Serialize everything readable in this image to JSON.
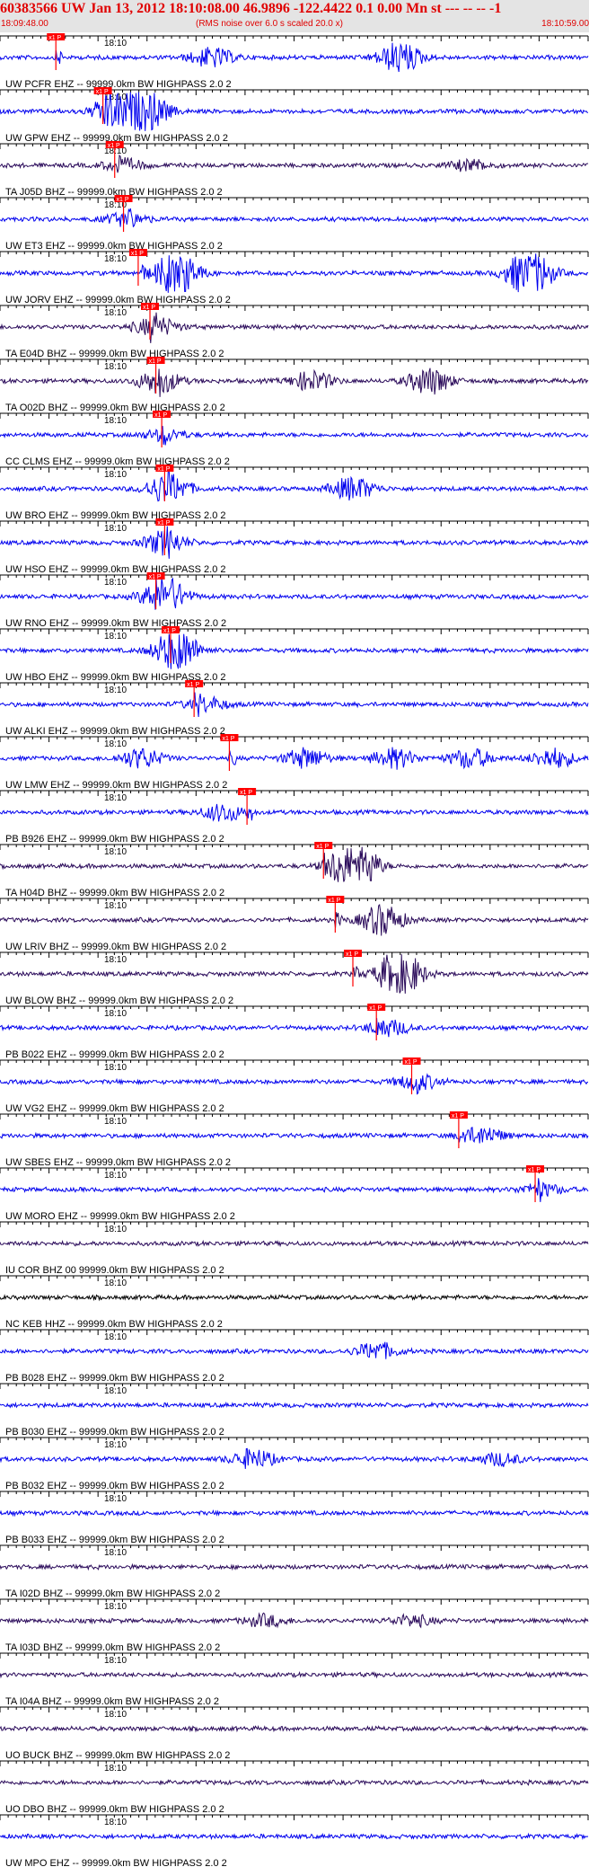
{
  "header": {
    "title": "60383566 UW Jan 13, 2012 18:10:08.00   46.9896 -122.4422  0.1 0.00 Mn st --- -- --  -1",
    "start_time": "18:09:48.00",
    "subtitle": "(RMS noise over 6.0 s scaled 20.0 x)",
    "end_time": "18:10:59.00"
  },
  "colors": {
    "trace_blue": "#0000ee",
    "trace_dark": "#2a0a5a",
    "trace_black": "#000000",
    "pick_red": "#ff0000",
    "header_bg": "#e4e4e4",
    "title_red": "#e00000"
  },
  "chart_data": {
    "type": "line",
    "time_range": [
      "18:09:48.00",
      "18:10:59.00"
    ],
    "minute_tick_label": "18:10",
    "pick_label": "x1 P",
    "traces": [
      {
        "label": "UW PCFR EHZ -- 99999.0km BW  HIGHPASS  2.0  2",
        "color": "blue",
        "pick": 0.095,
        "events": [
          [
            0.36,
            2.5
          ],
          [
            0.68,
            4
          ]
        ]
      },
      {
        "label": "UW GPW EHZ -- 99999.0km BW  HIGHPASS  2.0  2",
        "color": "blue",
        "pick": 0.175,
        "events": [
          [
            0.2,
            6
          ],
          [
            0.25,
            5
          ]
        ]
      },
      {
        "label": "TA J05D BHZ -- 99999.0km BW  HIGHPASS  2.0  2",
        "color": "dark",
        "pick": 0.195,
        "events": [
          [
            0.21,
            1.5
          ],
          [
            0.8,
            1.4
          ]
        ]
      },
      {
        "label": "UW ET3 EHZ -- 99999.0km BW  HIGHPASS  2.0  2",
        "color": "blue",
        "pick": 0.21,
        "events": [
          [
            0.215,
            1.6
          ]
        ]
      },
      {
        "label": "UW JORV EHZ -- 99999.0km BW  HIGHPASS  2.0  2",
        "color": "blue",
        "pick": 0.235,
        "events": [
          [
            0.3,
            6
          ],
          [
            0.9,
            7
          ]
        ]
      },
      {
        "label": "TA E04D BHZ -- 99999.0km BW  HIGHPASS  2.0  2",
        "color": "dark",
        "pick": 0.255,
        "events": [
          [
            0.265,
            2.5
          ]
        ]
      },
      {
        "label": "TA O02D BHZ -- 99999.0km BW  HIGHPASS  2.0  2",
        "color": "dark",
        "pick": 0.265,
        "events": [
          [
            0.27,
            3
          ],
          [
            0.53,
            2.5
          ],
          [
            0.73,
            3.5
          ]
        ]
      },
      {
        "label": "CC CLMS EHZ -- 99999.0km BW  HIGHPASS  2.0  2",
        "color": "blue",
        "pick": 0.275,
        "events": [
          [
            0.28,
            1.4
          ]
        ]
      },
      {
        "label": "UW BRO EHZ -- 99999.0km BW  HIGHPASS  2.0  2",
        "color": "blue",
        "pick": 0.28,
        "events": [
          [
            0.285,
            4
          ],
          [
            0.6,
            3
          ]
        ]
      },
      {
        "label": "UW HSO EHZ -- 99999.0km BW  HIGHPASS  2.0  2",
        "color": "blue",
        "pick": 0.28,
        "events": [
          [
            0.28,
            3
          ]
        ]
      },
      {
        "label": "UW RNO EHZ -- 99999.0km BW  HIGHPASS  2.0  2",
        "color": "blue",
        "pick": 0.265,
        "events": [
          [
            0.28,
            5
          ]
        ]
      },
      {
        "label": "UW HBO EHZ -- 99999.0km BW  HIGHPASS  2.0  2",
        "color": "blue",
        "pick": 0.29,
        "events": [
          [
            0.3,
            6
          ]
        ]
      },
      {
        "label": "UW ALKI EHZ -- 99999.0km BW  HIGHPASS  2.0  2",
        "color": "blue",
        "pick": 0.33,
        "events": [
          [
            0.35,
            1.8
          ]
        ]
      },
      {
        "label": "UW LMW EHZ -- 99999.0km BW  HIGHPASS  2.0  2",
        "color": "blue",
        "pick": 0.39,
        "events": [
          [
            0.24,
            2.5
          ],
          [
            0.52,
            2.5
          ],
          [
            0.67,
            2.5
          ],
          [
            0.8,
            2.5
          ],
          [
            0.94,
            2.5
          ]
        ]
      },
      {
        "label": "PB B926 EHZ -- 99999.0km BW  HIGHPASS  2.0  2",
        "color": "blue",
        "pick": 0.42,
        "events": [
          [
            0.38,
            2.2
          ]
        ]
      },
      {
        "label": "TA H04D BHZ -- 99999.0km BW  HIGHPASS  2.0  2",
        "color": "dark",
        "pick": 0.55,
        "events": [
          [
            0.6,
            10
          ]
        ]
      },
      {
        "label": "UW LRIV BHZ -- 99999.0km BW  HIGHPASS  2.0  2",
        "color": "dark",
        "pick": 0.57,
        "events": [
          [
            0.65,
            4
          ]
        ]
      },
      {
        "label": "UW BLOW BHZ -- 99999.0km BW  HIGHPASS  2.0  2",
        "color": "dark",
        "pick": 0.6,
        "events": [
          [
            0.68,
            7
          ]
        ]
      },
      {
        "label": "PB B022 EHZ -- 99999.0km BW  HIGHPASS  2.0  2",
        "color": "blue",
        "pick": 0.64,
        "events": [
          [
            0.66,
            2
          ]
        ]
      },
      {
        "label": "UW VG2 EHZ -- 99999.0km BW  HIGHPASS  2.0  2",
        "color": "blue",
        "pick": 0.7,
        "events": [
          [
            0.71,
            2
          ]
        ]
      },
      {
        "label": "UW SBES EHZ -- 99999.0km BW  HIGHPASS  2.0  2",
        "color": "blue",
        "pick": 0.78,
        "events": [
          [
            0.82,
            2.2
          ]
        ]
      },
      {
        "label": "UW MORO EHZ -- 99999.0km BW  HIGHPASS  2.0  2",
        "color": "blue",
        "pick": 0.91,
        "events": [
          [
            0.92,
            1.6
          ]
        ]
      },
      {
        "label": "IU COR BHZ 00 99999.0km BW  HIGHPASS  2.0  2",
        "color": "dark",
        "pick": null,
        "events": []
      },
      {
        "label": "NC KEB HHZ -- 99999.0km BW  HIGHPASS  2.0  2",
        "color": "black",
        "pick": null,
        "events": []
      },
      {
        "label": "PB B028 EHZ -- 99999.0km BW  HIGHPASS  2.0  2",
        "color": "blue",
        "pick": null,
        "events": [
          [
            0.64,
            2.2
          ]
        ]
      },
      {
        "label": "PB B030 EHZ -- 99999.0km BW  HIGHPASS  2.0  2",
        "color": "blue",
        "pick": null,
        "events": []
      },
      {
        "label": "PB B032 EHZ -- 99999.0km BW  HIGHPASS  2.0  2",
        "color": "blue",
        "pick": null,
        "events": [
          [
            0.43,
            2.5
          ],
          [
            0.85,
            1.6
          ]
        ]
      },
      {
        "label": "PB B033 EHZ -- 99999.0km BW  HIGHPASS  2.0  2",
        "color": "blue",
        "pick": null,
        "events": []
      },
      {
        "label": "TA I02D BHZ -- 99999.0km BW  HIGHPASS  2.0  2",
        "color": "dark",
        "pick": null,
        "events": []
      },
      {
        "label": "TA I03D BHZ -- 99999.0km BW  HIGHPASS  2.0  2",
        "color": "dark",
        "pick": null,
        "events": [
          [
            0.45,
            1.5
          ],
          [
            0.7,
            1.4
          ]
        ]
      },
      {
        "label": "TA I04A BHZ -- 99999.0km BW  HIGHPASS  2.0  2",
        "color": "dark",
        "pick": null,
        "events": []
      },
      {
        "label": "UO BUCK BHZ -- 99999.0km BW  HIGHPASS  2.0  2",
        "color": "dark",
        "pick": null,
        "events": []
      },
      {
        "label": "UO DBO BHZ -- 99999.0km BW  HIGHPASS  2.0  2",
        "color": "dark",
        "pick": null,
        "events": []
      },
      {
        "label": "UW MPO EHZ -- 99999.0km BW  HIGHPASS  2.0  2",
        "color": "blue",
        "pick": null,
        "events": []
      }
    ]
  }
}
